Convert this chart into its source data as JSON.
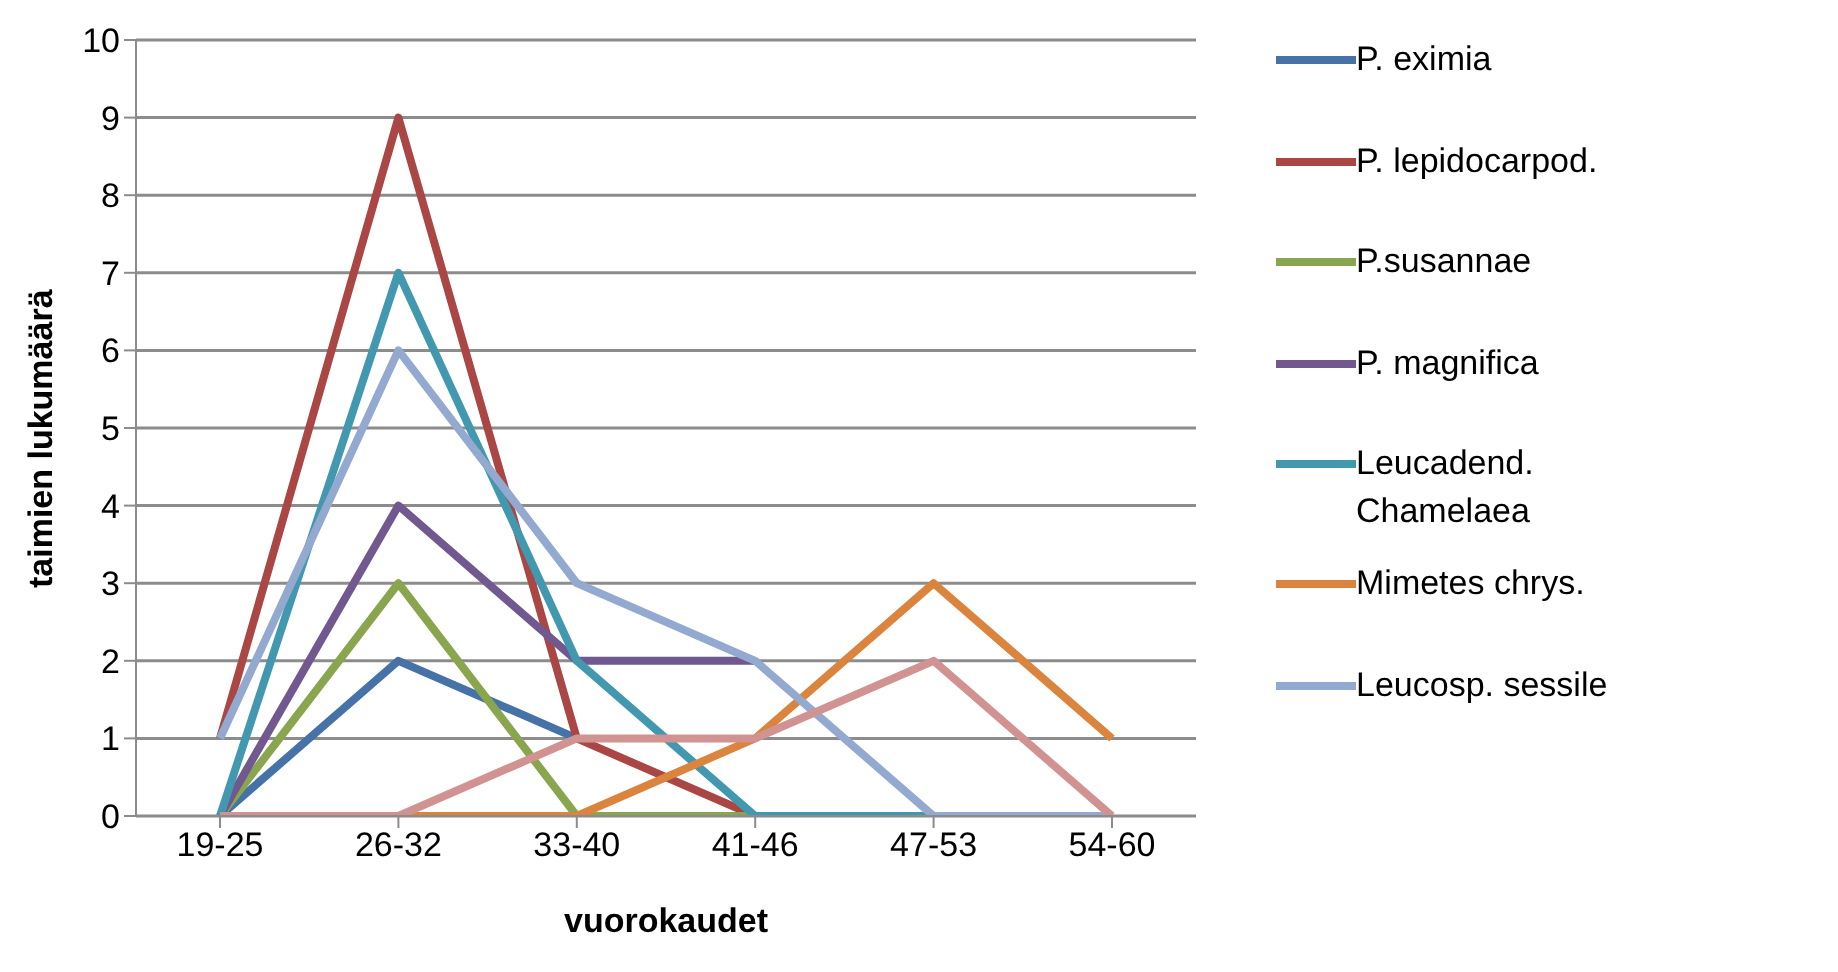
{
  "chart_data": {
    "type": "line",
    "xlabel": "vuorokaudet",
    "ylabel": "taimien lukumäärä",
    "categories": [
      "19-25",
      "26-32",
      "33-40",
      "41-46",
      "47-53",
      "54-60"
    ],
    "ylim": [
      0,
      10
    ],
    "yticks": [
      0,
      1,
      2,
      3,
      4,
      5,
      6,
      7,
      8,
      9,
      10
    ],
    "grid": "y",
    "legend": "right",
    "marker": "none",
    "line_style": "solid",
    "series": [
      {
        "name": "P. eximia",
        "color": "#4572a7",
        "values": [
          0,
          2,
          1,
          null,
          null,
          null
        ]
      },
      {
        "name": "P. lepidocarpod.",
        "color": "#aa4643",
        "values": [
          1,
          9,
          1,
          0,
          null,
          null
        ]
      },
      {
        "name": "P.susannae",
        "color": "#89a54e",
        "values": [
          0,
          3,
          0,
          0,
          null,
          null
        ]
      },
      {
        "name": "P. magnifica",
        "color": "#71588f",
        "values": [
          0,
          4,
          2,
          2,
          null,
          null
        ]
      },
      {
        "name": "Leucadend. Chamelaea",
        "color": "#4198af",
        "values": [
          0,
          7,
          2,
          0,
          0,
          null
        ]
      },
      {
        "name": "Mimetes chrys.",
        "color": "#db843d",
        "values": [
          null,
          0,
          0,
          1,
          3,
          1
        ]
      },
      {
        "name": "Leucosp. sessile",
        "color": "#93a9cf",
        "values": [
          1,
          6,
          3,
          2,
          0,
          0
        ]
      },
      {
        "color": "#d19392",
        "values": [
          0,
          0,
          1,
          1,
          2,
          0
        ]
      }
    ]
  }
}
